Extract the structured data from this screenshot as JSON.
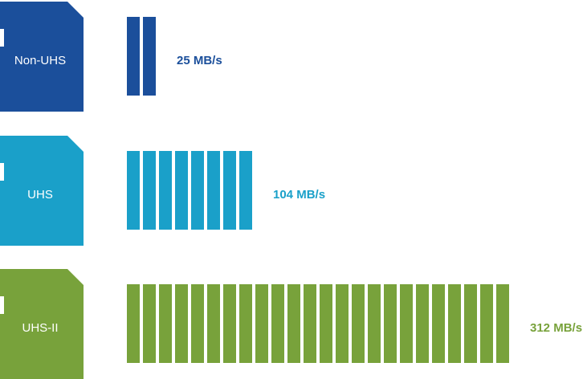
{
  "chart_data": {
    "type": "bar",
    "categories": [
      "Non-UHS",
      "UHS",
      "UHS-II"
    ],
    "values": [
      25,
      104,
      312
    ],
    "value_labels": [
      "25 MB/s",
      "104 MB/s",
      "312 MB/s"
    ],
    "bar_segments": [
      2,
      8,
      24
    ],
    "colors": [
      "#1b4f9b",
      "#1aa0c9",
      "#78a23b"
    ],
    "orientation": "horizontal",
    "icon": "sd-card-icon",
    "title": "",
    "xlabel": "",
    "ylabel": "",
    "legend": "none",
    "grid": false
  }
}
